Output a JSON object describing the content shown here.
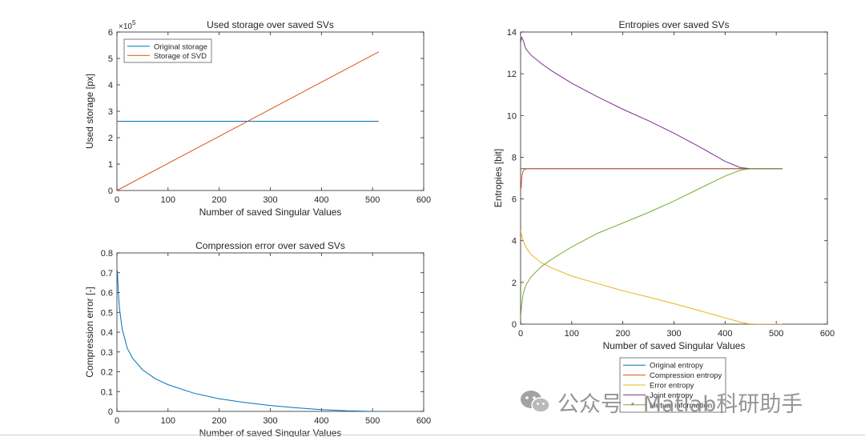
{
  "watermark": {
    "text": "公众号 · Matlab科研助手"
  },
  "chart_data": [
    {
      "id": "storage",
      "type": "line",
      "title": "Used storage over saved SVs",
      "xlabel": "Number of saved Singular Values",
      "ylabel": "Used storage [px]",
      "xlim": [
        0,
        600
      ],
      "ylim": [
        0,
        6
      ],
      "y_exponent_label": "×10",
      "y_exponent_power": "5",
      "xticks": [
        0,
        100,
        200,
        300,
        400,
        500,
        600
      ],
      "yticks": [
        0,
        1,
        2,
        3,
        4,
        5,
        6
      ],
      "grid": false,
      "legend": {
        "position": "top-left"
      },
      "series": [
        {
          "name": "Original storage",
          "color": "#0072BD",
          "x": [
            0,
            512
          ],
          "y": [
            2.62,
            2.62
          ]
        },
        {
          "name": "Storage of SVD",
          "color": "#D95319",
          "x": [
            0,
            512
          ],
          "y": [
            0,
            5.25
          ]
        }
      ]
    },
    {
      "id": "error",
      "type": "line",
      "title": "Compression error over saved SVs",
      "xlabel": "Number of saved Singular Values",
      "ylabel": "Compression error [-]",
      "xlim": [
        0,
        600
      ],
      "ylim": [
        0,
        0.8
      ],
      "xticks": [
        0,
        100,
        200,
        300,
        400,
        500,
        600
      ],
      "yticks": [
        0,
        0.1,
        0.2,
        0.3,
        0.4,
        0.5,
        0.6,
        0.7,
        0.8
      ],
      "grid": false,
      "series": [
        {
          "name": "Compression error",
          "color": "#0072BD",
          "x": [
            1,
            3,
            5,
            10,
            20,
            30,
            50,
            75,
            100,
            150,
            200,
            250,
            300,
            350,
            400,
            450,
            500,
            512
          ],
          "y": [
            0.71,
            0.59,
            0.52,
            0.42,
            0.32,
            0.27,
            0.21,
            0.165,
            0.135,
            0.092,
            0.064,
            0.045,
            0.03,
            0.018,
            0.009,
            0.003,
            0.0,
            0.0
          ]
        }
      ]
    },
    {
      "id": "entropy",
      "type": "line",
      "title": "Entropies over saved SVs",
      "xlabel": "Number of saved Singular Values",
      "ylabel": "Entropies [bit]",
      "xlim": [
        0,
        600
      ],
      "ylim": [
        0,
        14
      ],
      "xticks": [
        0,
        100,
        200,
        300,
        400,
        500,
        600
      ],
      "yticks": [
        0,
        2,
        4,
        6,
        8,
        10,
        12,
        14
      ],
      "grid": false,
      "legend": {
        "position": "below"
      },
      "series": [
        {
          "name": "Original entropy",
          "color": "#0072BD",
          "x": [
            0,
            512
          ],
          "y": [
            7.45,
            7.45
          ]
        },
        {
          "name": "Compression entropy",
          "color": "#D95319",
          "x": [
            1,
            2,
            3,
            5,
            8,
            12,
            20,
            50,
            512
          ],
          "y": [
            6.5,
            6.9,
            7.15,
            7.35,
            7.42,
            7.44,
            7.45,
            7.45,
            7.45
          ]
        },
        {
          "name": "Error entropy",
          "color": "#EDB120",
          "x": [
            0,
            2,
            5,
            10,
            20,
            40,
            60,
            100,
            150,
            200,
            250,
            300,
            350,
            400,
            430,
            445,
            460,
            512
          ],
          "y": [
            4.5,
            4.25,
            4.0,
            3.7,
            3.35,
            2.95,
            2.7,
            2.3,
            1.95,
            1.6,
            1.3,
            0.98,
            0.65,
            0.3,
            0.1,
            0.02,
            0.0,
            0.0
          ]
        },
        {
          "name": "Joint entropy",
          "color": "#7E2F8E",
          "x": [
            0,
            2,
            5,
            10,
            20,
            40,
            60,
            100,
            150,
            200,
            250,
            300,
            350,
            400,
            430,
            450,
            512
          ],
          "y": [
            13.5,
            13.75,
            13.6,
            13.2,
            12.9,
            12.5,
            12.15,
            11.55,
            10.9,
            10.3,
            9.75,
            9.15,
            8.5,
            7.8,
            7.5,
            7.45,
            7.45
          ]
        },
        {
          "name": "Mutual information",
          "color": "#77AC30",
          "x": [
            0,
            2,
            5,
            10,
            20,
            40,
            60,
            100,
            150,
            200,
            250,
            300,
            350,
            400,
            430,
            450,
            512
          ],
          "y": [
            0.3,
            0.9,
            1.45,
            1.85,
            2.25,
            2.75,
            3.1,
            3.7,
            4.35,
            4.85,
            5.35,
            5.9,
            6.5,
            7.1,
            7.38,
            7.45,
            7.45
          ]
        }
      ]
    }
  ]
}
